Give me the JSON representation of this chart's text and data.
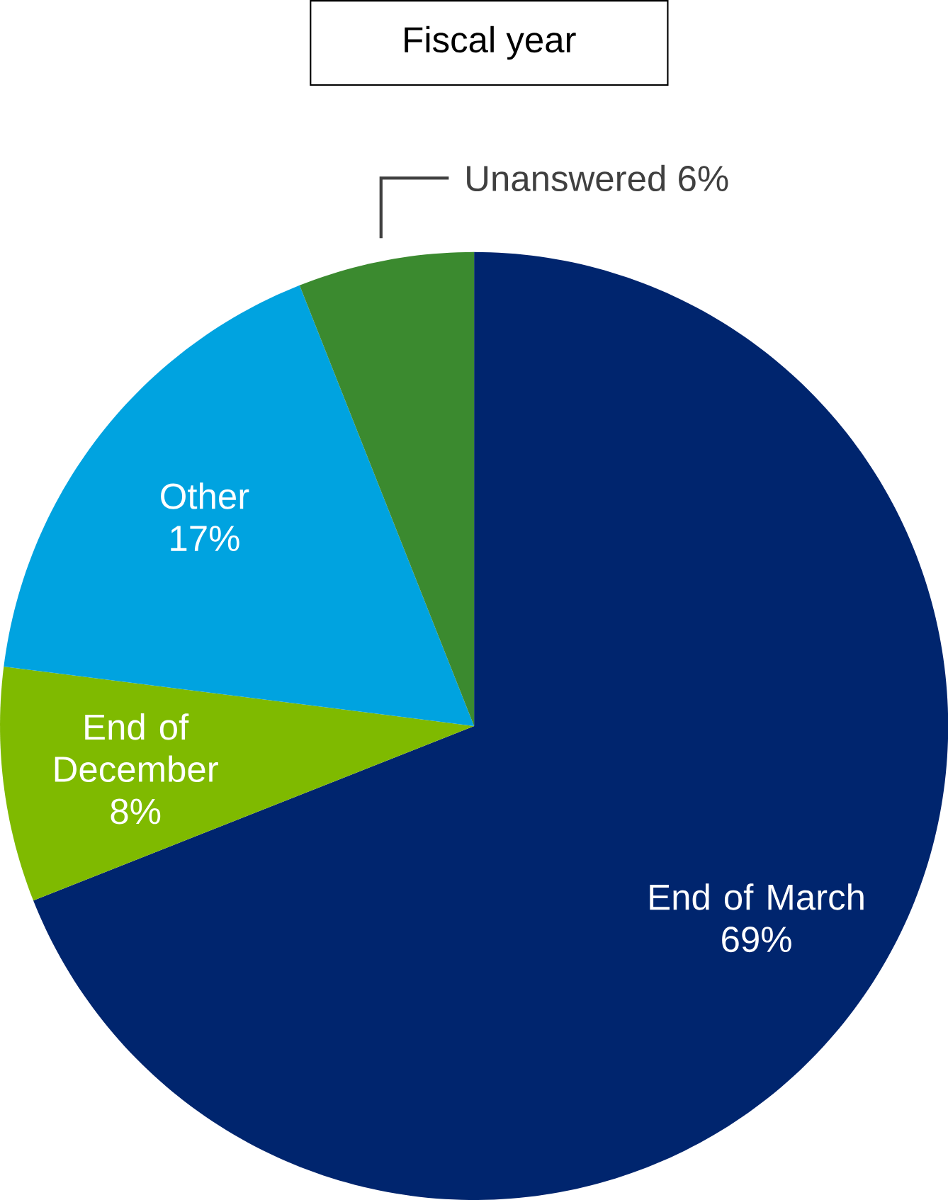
{
  "chart_data": {
    "type": "pie",
    "title": "Fiscal year",
    "categories": [
      "End of March",
      "End of December",
      "Other",
      "Unanswered"
    ],
    "values": [
      69,
      8,
      17,
      6
    ],
    "value_labels": [
      "69%",
      "8%",
      "17%",
      "6%"
    ],
    "colors": [
      "#00256e",
      "#7fba00",
      "#00a3e0",
      "#3b8a2f"
    ]
  }
}
